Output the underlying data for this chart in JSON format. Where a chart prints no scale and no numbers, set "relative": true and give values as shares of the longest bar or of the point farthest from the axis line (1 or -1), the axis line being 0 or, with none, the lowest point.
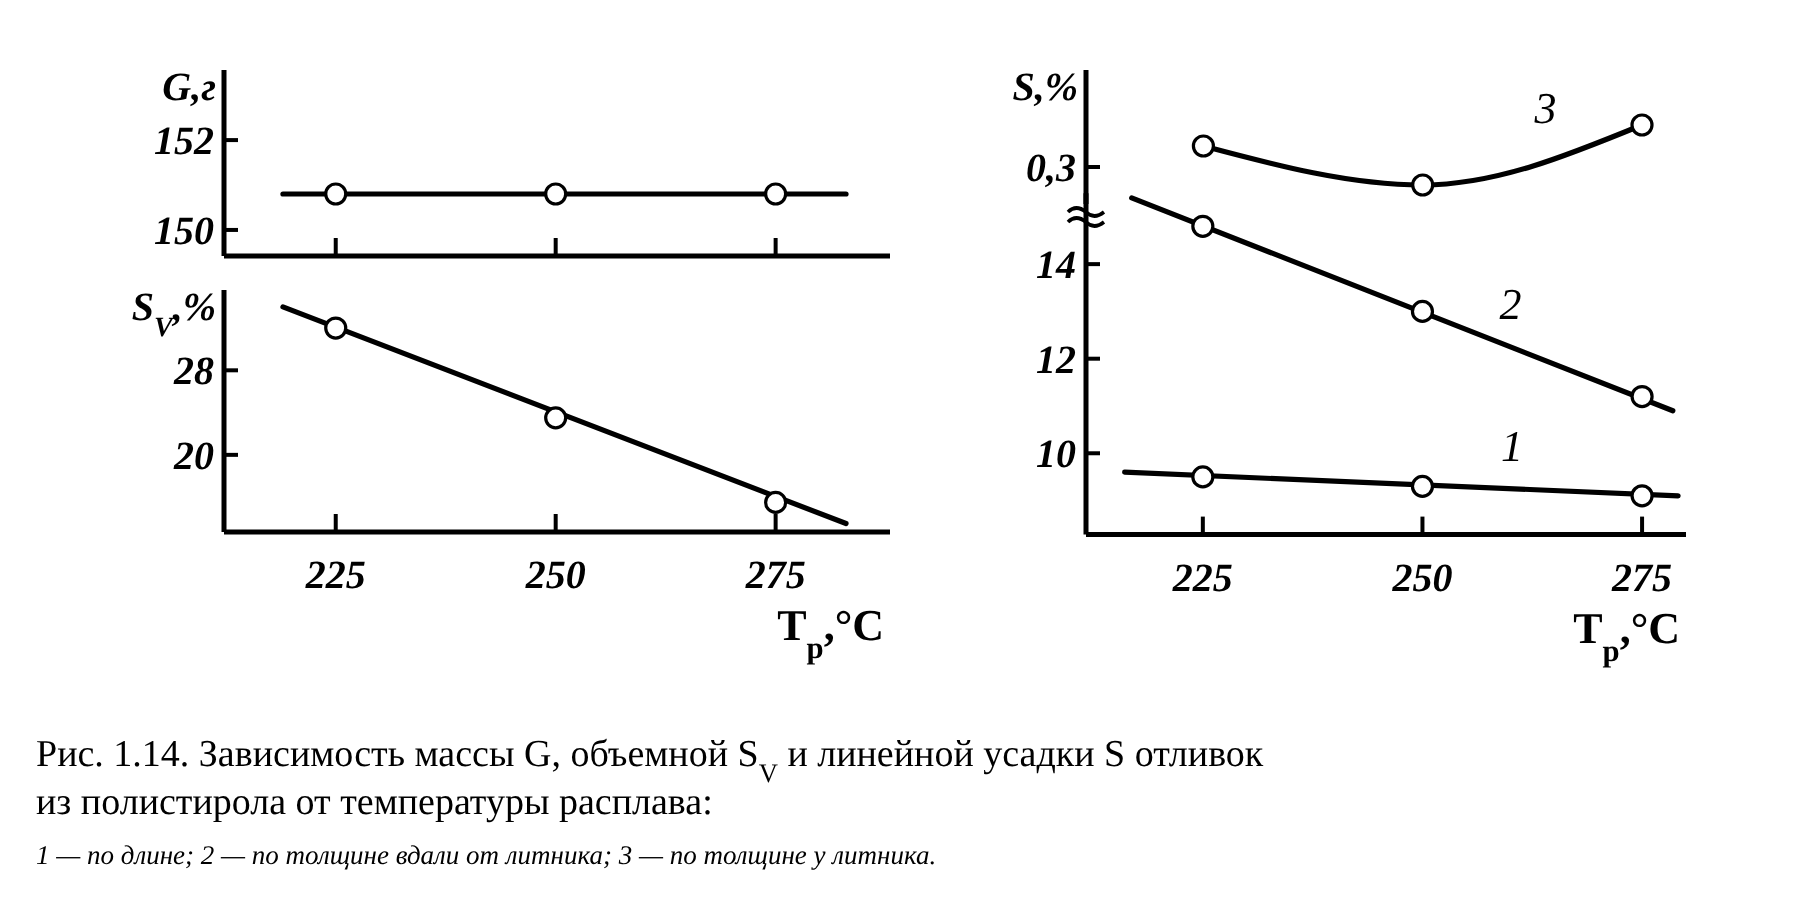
{
  "chart_data": [
    {
      "type": "line",
      "ylabel": "G,г",
      "xlim": [
        212.3,
        288
      ],
      "xticks": [
        225,
        250,
        275
      ],
      "ylim": [
        149.42,
        153.56
      ],
      "yticks": [
        150,
        152
      ],
      "tick_labels": "y",
      "series": [
        {
          "type": "line",
          "x": [
            219,
            283
          ],
          "values": [
            150.8,
            150.8
          ],
          "color": "#000000"
        },
        {
          "type": "scatter",
          "x": [
            225,
            250,
            275
          ],
          "values": [
            150.8,
            150.8,
            150.8
          ],
          "color": "#000000",
          "marker": "circle"
        }
      ],
      "annotations": [
        "Рис. 1.14. Зависимость массы G, объемной S$_{V}$ и линейной усадки S отливок",
        "из полистирола от температуры расплава:",
        "1 — по длине; 2 — по толщине вдали от литника; 3 — по толщине у литника."
      ]
    },
    {
      "type": "line",
      "ylabel": "S$_{V}$,%",
      "xlabel": "T$_{р}$,°C",
      "xlim": [
        212.3,
        288
      ],
      "xticks": [
        225,
        250,
        275
      ],
      "ylim": [
        12.7,
        35.6
      ],
      "yticks": [
        20,
        28
      ],
      "series": [
        {
          "type": "line",
          "x": [
            219,
            283
          ],
          "values": [
            34,
            13.5
          ],
          "color": "#000000"
        },
        {
          "type": "scatter",
          "x": [
            225,
            250,
            275
          ],
          "values": [
            32,
            23.5,
            15.5
          ],
          "color": "#000000",
          "marker": "circle"
        }
      ]
    },
    {
      "type": "line",
      "ylabel": "S,%",
      "relative": true,
      "categories": [
        null,
        null,
        null
      ],
      "marker": "circle",
      "series": [
        {
          "name": "3",
          "values": [
            0.65,
            0,
            1
          ],
          "color": "#000000"
        }
      ],
      "annotations": [
        "0,3"
      ]
    },
    {
      "type": "line",
      "xlabel": "T$_{р}$,°C",
      "xlim": [
        211.7,
        280
      ],
      "xticks": [
        225,
        250,
        275
      ],
      "ylim": [
        8.28,
        15.5
      ],
      "yticks": [
        10,
        12,
        14
      ],
      "series": [
        {
          "type": "line",
          "name": "1",
          "x": [
            216.1,
            279.1
          ],
          "values": [
            9.6,
            9.1
          ],
          "color": "#000000"
        },
        {
          "type": "scatter",
          "x": [
            225,
            250,
            275
          ],
          "values": [
            9.5,
            9.3,
            9.1
          ],
          "color": "#000000",
          "marker": "circle"
        },
        {
          "type": "line",
          "name": "2",
          "x": [
            216.9,
            278.5
          ],
          "values": [
            15.4,
            10.9
          ],
          "color": "#000000"
        },
        {
          "type": "scatter",
          "x": [
            225,
            250,
            275
          ],
          "values": [
            14.8,
            13,
            11.2
          ],
          "color": "#000000",
          "marker": "circle"
        }
      ]
    }
  ]
}
